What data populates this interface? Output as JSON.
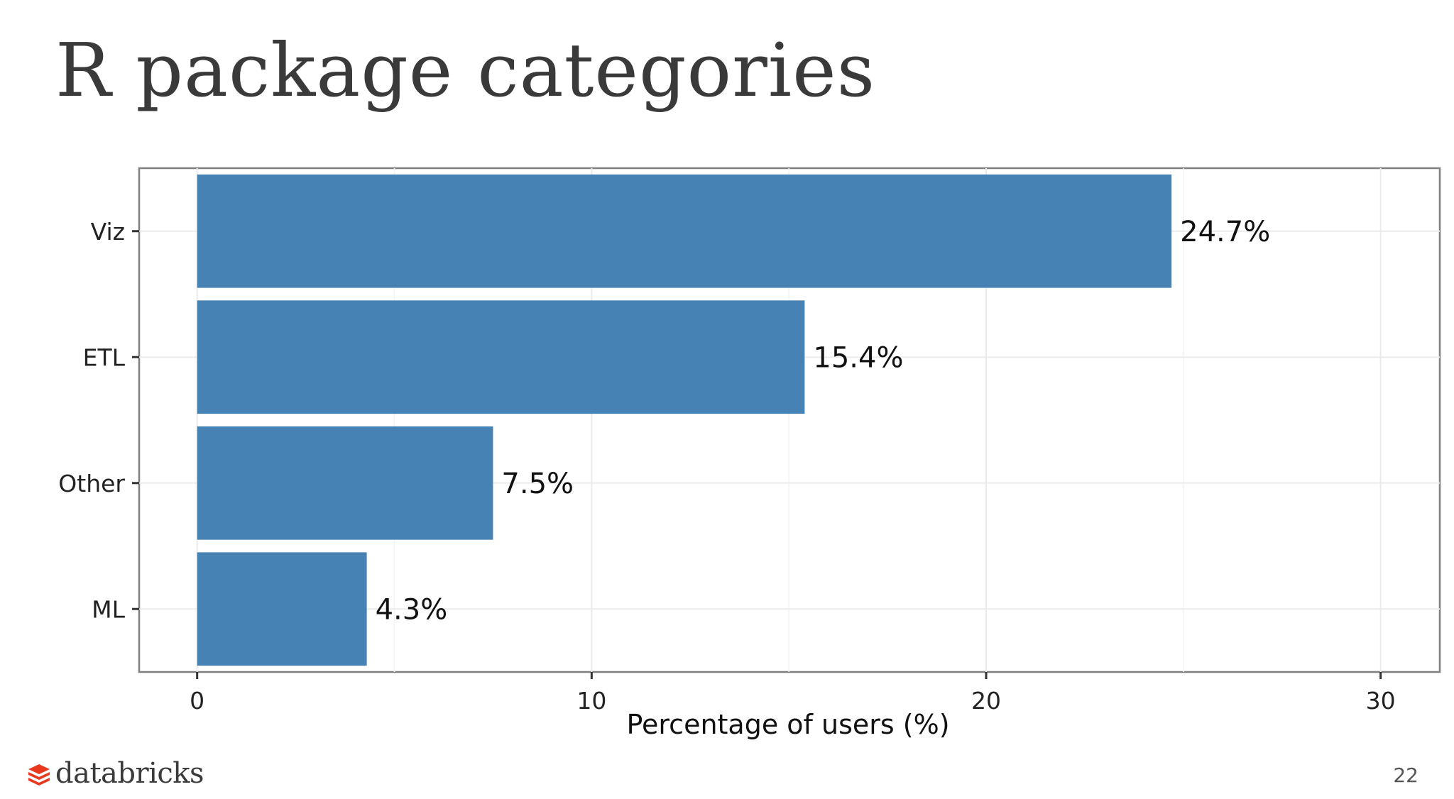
{
  "slide": {
    "title": "R package categories",
    "page_number": "22",
    "logo_text": "databricks"
  },
  "colors": {
    "bar": "#4682b4",
    "logo_accent": "#e8391f",
    "panel_border": "#7f7f7f",
    "grid": "#ebebeb"
  },
  "chart_data": {
    "type": "bar",
    "orientation": "horizontal",
    "categories": [
      "Viz",
      "ETL",
      "Other",
      "ML"
    ],
    "values": [
      24.7,
      15.4,
      7.5,
      4.3
    ],
    "data_labels": [
      "24.7%",
      "15.4%",
      "7.5%",
      "4.3%"
    ],
    "xlabel": "Percentage of users (%)",
    "ylabel": "",
    "xlim": [
      -1.47,
      31.5
    ],
    "xticks": [
      0,
      10,
      20,
      30
    ],
    "xtick_labels": [
      "0",
      "10",
      "20",
      "30"
    ],
    "grid": true,
    "legend": "none"
  }
}
